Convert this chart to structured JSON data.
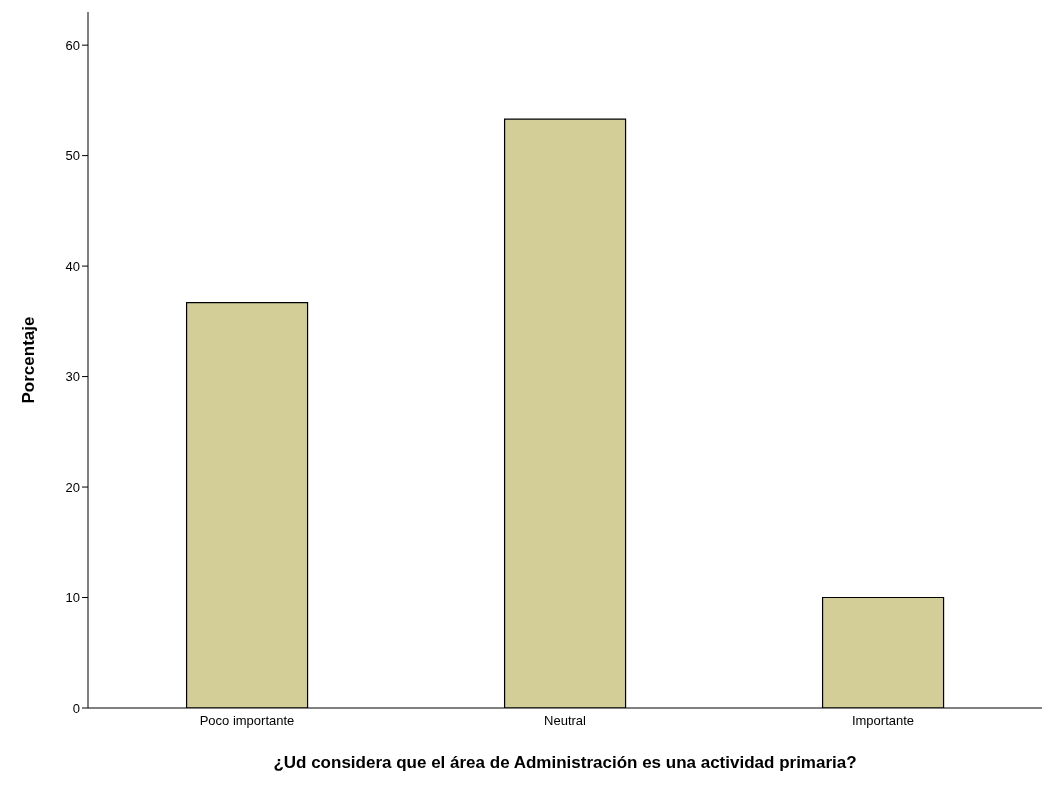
{
  "chart_data": {
    "type": "bar",
    "xlabel": "¿Ud considera que el área de Administración es una actividad primaria?",
    "ylabel": "Porcentaje",
    "categories": [
      "Poco importante",
      "Neutral",
      "Importante"
    ],
    "values": [
      36.7,
      53.3,
      10.0
    ],
    "color": "#d3ce97",
    "ylim": [
      0,
      63
    ],
    "yticks": [
      0,
      10,
      20,
      30,
      40,
      50,
      60
    ],
    "grid": false,
    "legend": false
  }
}
